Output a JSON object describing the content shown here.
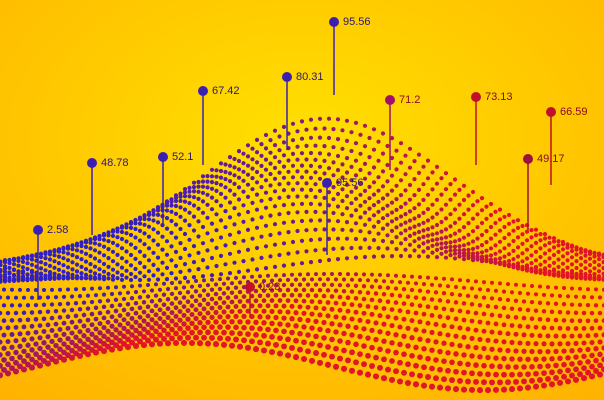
{
  "pins": [
    {
      "label": 2.58
    },
    {
      "label": 48.78
    },
    {
      "label": 52.1
    },
    {
      "label": 67.42
    },
    {
      "label": 80.31
    },
    {
      "label": 95.56
    },
    {
      "label": 71.2
    },
    {
      "label": 73.13
    },
    {
      "label": 66.59
    },
    {
      "label": 49.17
    },
    {
      "label": 95.56
    },
    {
      "label": 0.23
    }
  ]
}
